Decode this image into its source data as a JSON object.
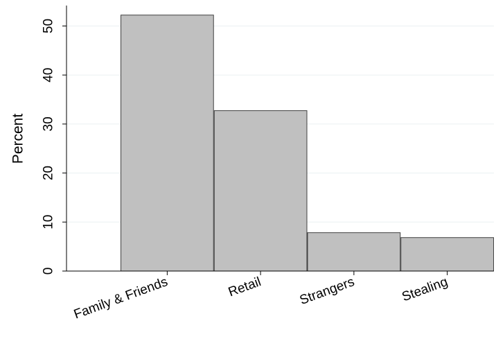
{
  "chart_data": {
    "type": "bar",
    "categories": [
      "Family & Friends",
      "Retail",
      "Strangers",
      "Stealing"
    ],
    "values": [
      52.3,
      32.8,
      7.9,
      6.9
    ],
    "title": "",
    "xlabel": "",
    "ylabel": "Percent",
    "ylim": [
      0,
      55
    ],
    "yticks": [
      0,
      10,
      20,
      30,
      40,
      50
    ],
    "grid": true,
    "legend": "none",
    "colors": {
      "bar_fill": "#c0c0c0",
      "bar_stroke": "#404040",
      "grid": "#eaf0f2",
      "axis": "#000000"
    }
  }
}
